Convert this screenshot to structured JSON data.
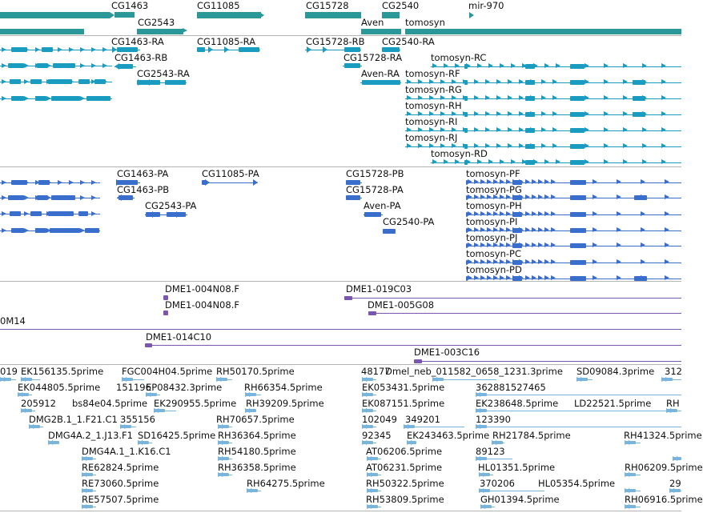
{
  "colors": {
    "gene": "#2a9898",
    "transcript": "#1a9cc0",
    "protein": "#3a6ecc",
    "clone": "#7a56b0",
    "est": "#78b4dc",
    "separator": "#b4b4b4",
    "text": "#111111"
  },
  "genes": {
    "labels": [
      "CG1463",
      "CG2543",
      "CG11085",
      "CG15728",
      "CG2540",
      "Aven",
      "tomosyn",
      "mir-970"
    ]
  },
  "transcripts": {
    "labels": [
      "CG1463-RA",
      "CG11085-RA",
      "CG15728-RB",
      "CG2540-RA",
      "CG1463-RB",
      "CG15728-RA",
      "tomosyn-RC",
      "CG2543-RA",
      "Aven-RA",
      "tomosyn-RF",
      "tomosyn-RG",
      "tomosyn-RH",
      "tomosyn-RI",
      "tomosyn-RJ",
      "tomosyn-RD"
    ]
  },
  "proteins": {
    "labels": [
      "CG1463-PA",
      "CG11085-PA",
      "CG15728-PB",
      "tomosyn-PF",
      "CG1463-PB",
      "CG15728-PA",
      "tomosyn-PG",
      "CG2543-PA",
      "Aven-PA",
      "tomosyn-PH",
      "CG2540-PA",
      "tomosyn-PI",
      "tomosyn-PJ",
      "tomosyn-PC",
      "tomosyn-PD"
    ]
  },
  "clones": {
    "labels": [
      "DME1-004N08.F",
      "DME1-019C03",
      "DME1-004N08.F",
      "DME1-005G08",
      "0M14",
      "DME1-014C10",
      "DME1-003C16"
    ]
  },
  "ests": {
    "labels": [
      "019",
      "EK156135.5prime",
      "FGC004H04.5prime",
      "RH50170.5prime",
      "48177",
      "Dmel_neb_011582_0658_1231.3prime",
      "SD09084.3prime",
      "312",
      "EK044805.5prime",
      "151196",
      "EP08432.3prime",
      "RH66354.5prime",
      "EK053431.5prime",
      "362881527465",
      "205912",
      "bs84e04.5prime",
      "EK290955.5prime",
      "RH39209.5prime",
      "EK087151.5prime",
      "EK238648.5prime",
      "LD22521.5prime",
      "RH",
      "DMG2B.1_1.F21.C1",
      "355156",
      "RH70657.5prime",
      "102049",
      "349201",
      "123390",
      "DMG4A.2_1.J13.F1",
      "SD16425.5prime",
      "RH36364.5prime",
      "92345",
      "EK243463.5prime",
      "RH21784.5prime",
      "RH41324.5prime",
      "DMG4A.1_1.K16.C1",
      "RH54180.5prime",
      "AT06206.5prime",
      "89123",
      "RE62824.5prime",
      "RH36358.5prime",
      "AT06231.5prime",
      "HL01351.5prime",
      "RH06209.5prime",
      "RE73060.5prime",
      "RH64275.5prime",
      "RH50322.5prime",
      "370206",
      "HL05354.5prime",
      "29",
      "RE57507.5prime",
      "RH53809.5prime",
      "GH01394.5prime",
      "RH06916.5prime"
    ]
  }
}
